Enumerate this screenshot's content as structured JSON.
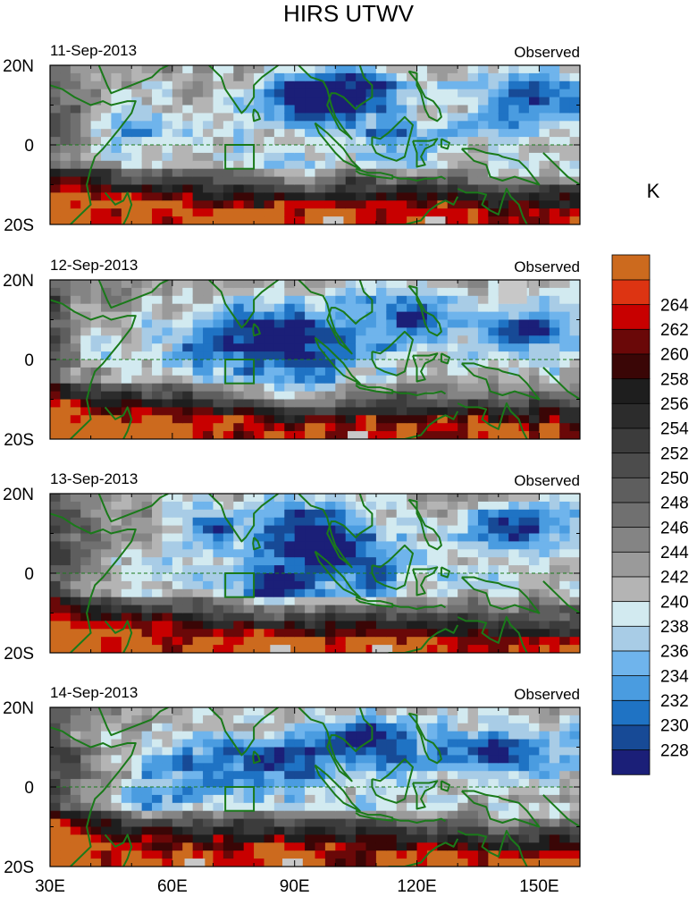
{
  "chart_data": {
    "type": "heatmap",
    "title": "HIRS UTWV",
    "subtitle_right": "Observed",
    "units_label": "K",
    "x_ticks": [
      {
        "value": 30,
        "label": "30E"
      },
      {
        "value": 60,
        "label": "60E"
      },
      {
        "value": 90,
        "label": "90E"
      },
      {
        "value": 120,
        "label": "120E"
      },
      {
        "value": 150,
        "label": "150E"
      }
    ],
    "y_ticks": [
      {
        "value": 20,
        "label": "20N"
      },
      {
        "value": 0,
        "label": "0"
      },
      {
        "value": -20,
        "label": "20S"
      }
    ],
    "lon_range": [
      30,
      160
    ],
    "lat_range": [
      -20,
      20
    ],
    "panels": [
      {
        "date": "11-Sep-2013",
        "label": "Observed",
        "missing_boxes": [
          [
            97,
            102,
            -20,
            -18
          ],
          [
            122,
            127,
            -20,
            -18
          ]
        ]
      },
      {
        "date": "12-Sep-2013",
        "label": "Observed",
        "missing_boxes": [
          [
            103,
            108,
            -20,
            -18
          ],
          [
            140,
            147,
            14,
            20
          ]
        ]
      },
      {
        "date": "13-Sep-2013",
        "label": "Observed",
        "missing_boxes": [
          [
            84,
            89,
            -20,
            -18
          ],
          [
            109,
            114,
            -20,
            -18
          ]
        ]
      },
      {
        "date": "14-Sep-2013",
        "label": "Observed",
        "missing_boxes": [
          [
            63,
            68,
            -20,
            -18
          ],
          [
            87,
            92,
            -20,
            -18
          ]
        ]
      }
    ],
    "colorbar": {
      "levels": [
        228,
        230,
        232,
        234,
        236,
        238,
        240,
        242,
        244,
        246,
        248,
        250,
        252,
        254,
        256,
        258,
        260,
        262,
        264
      ],
      "labels": [
        "228",
        "230",
        "232",
        "234",
        "236",
        "238",
        "240",
        "242",
        "244",
        "246",
        "248",
        "250",
        "252",
        "254",
        "256",
        "258",
        "260",
        "262",
        "264"
      ],
      "colors": [
        "#1b1f78",
        "#174a96",
        "#1f73c4",
        "#4a9ce0",
        "#6fb4ec",
        "#a8cce6",
        "#d2eaf0",
        "#b4b4b4",
        "#9a9a9a",
        "#848484",
        "#707070",
        "#5e5e5e",
        "#4c4c4c",
        "#3c3c3c",
        "#2c2c2c",
        "#1e1e1e",
        "#3a0606",
        "#6a0808",
        "#c80000",
        "#dd3412",
        "#cc6a1e"
      ]
    },
    "equator_line": "dashed",
    "box_region": {
      "lon": [
        73,
        80
      ],
      "lat": [
        -6,
        0
      ]
    }
  }
}
